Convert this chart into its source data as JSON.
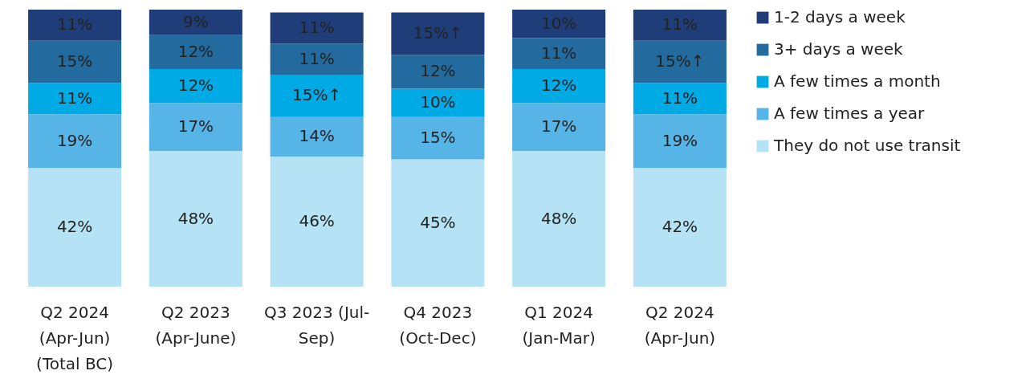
{
  "chart_data": {
    "type": "bar",
    "stacked": true,
    "legend": "right",
    "categories": [
      "Q2 2024\n(Apr-Jun)\n(Total BC)",
      "Q2 2023\n(Apr-June)",
      "Q3 2023 (Jul-\nSep)",
      "Q4 2023\n(Oct-Dec)",
      "Q1 2024\n(Jan-Mar)",
      "Q2 2024\n(Apr-Jun)"
    ],
    "series": [
      {
        "name": "They do not use transit",
        "color": "#b5e3f5",
        "values": [
          42,
          48,
          46,
          45,
          48,
          42
        ],
        "value_labels": [
          "42%",
          "48%",
          "46%",
          "45%",
          "48%",
          "42%"
        ]
      },
      {
        "name": "A few times a year",
        "color": "#56b4e6",
        "values": [
          19,
          17,
          14,
          15,
          17,
          19
        ],
        "value_labels": [
          "19%",
          "17%",
          "14%",
          "15%",
          "17%",
          "19%"
        ]
      },
      {
        "name": "A few times a month",
        "color": "#00aae4",
        "values": [
          11,
          12,
          15,
          10,
          12,
          11
        ],
        "value_labels": [
          "11%",
          "12%",
          "15%↑",
          "10%",
          "12%",
          "11%"
        ]
      },
      {
        "name": "3+ days a week",
        "color": "#236b9f",
        "values": [
          15,
          12,
          11,
          12,
          11,
          15
        ],
        "value_labels": [
          "15%",
          "12%",
          "11%",
          "12%",
          "11%",
          "15%↑"
        ]
      },
      {
        "name": "1-2 days a week",
        "color": "#1f3e79",
        "values": [
          11,
          9,
          11,
          15,
          10,
          11
        ],
        "value_labels": [
          "11%",
          "9%",
          "11%",
          "15%↑",
          "10%",
          "11%"
        ]
      }
    ]
  }
}
